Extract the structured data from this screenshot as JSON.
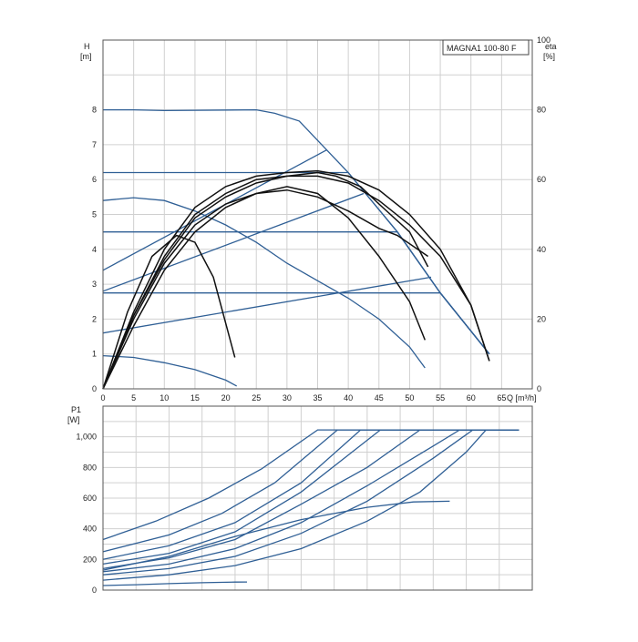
{
  "chart_data": [
    {
      "type": "line",
      "legend": "MAGNA1 100-80 F",
      "y_title": "H",
      "y_unit": "[m]",
      "y2_title": "eta",
      "y2_unit": "[%]",
      "x_title": "Q [m³/h]",
      "xlim": [
        0,
        70
      ],
      "ylim": [
        0,
        10
      ],
      "y2lim": [
        0,
        100
      ],
      "x_ticks": [
        "0",
        "5",
        "10",
        "15",
        "20",
        "25",
        "30",
        "35",
        "40",
        "45",
        "50",
        "55",
        "60",
        "65"
      ],
      "y_ticks": [
        "0",
        "1",
        "2",
        "3",
        "4",
        "5",
        "6",
        "7",
        "8"
      ],
      "y2_ticks": [
        "0",
        "20",
        "40",
        "60",
        "80",
        "100"
      ],
      "grid": true,
      "head_curves": [
        {
          "color": "#2f5f95",
          "points": [
            [
              0,
              8
            ],
            [
              5,
              8
            ],
            [
              10,
              7.98
            ],
            [
              25,
              8
            ],
            [
              28,
              7.9
            ],
            [
              32,
              7.68
            ],
            [
              40,
              6.2
            ],
            [
              48,
              4.5
            ],
            [
              55,
              2.75
            ],
            [
              63,
              1.0
            ]
          ]
        },
        {
          "color": "#2f5f95",
          "points": [
            [
              0,
              6.2
            ],
            [
              40,
              6.2
            ],
            [
              48,
              4.5
            ],
            [
              55,
              2.75
            ],
            [
              63,
              1.0
            ]
          ]
        },
        {
          "color": "#2f5f95",
          "points": [
            [
              0,
              4.5
            ],
            [
              48,
              4.5
            ],
            [
              55,
              2.75
            ],
            [
              63,
              1.0
            ]
          ]
        },
        {
          "color": "#2f5f95",
          "points": [
            [
              0,
              2.75
            ],
            [
              55,
              2.75
            ],
            [
              63,
              1.0
            ]
          ]
        },
        {
          "color": "#2f5f95",
          "points": [
            [
              0,
              5.4
            ],
            [
              5,
              5.48
            ],
            [
              10,
              5.4
            ],
            [
              15,
              5.1
            ],
            [
              20,
              4.7
            ],
            [
              25,
              4.2
            ],
            [
              30,
              3.6
            ],
            [
              35,
              3.1
            ],
            [
              40,
              2.6
            ],
            [
              45,
              2.0
            ],
            [
              50,
              1.2
            ],
            [
              52.5,
              0.6
            ]
          ]
        },
        {
          "color": "#2f5f95",
          "points": [
            [
              0,
              0.95
            ],
            [
              5,
              0.9
            ],
            [
              10,
              0.75
            ],
            [
              15,
              0.55
            ],
            [
              20,
              0.25
            ],
            [
              21.8,
              0.08
            ]
          ]
        }
      ],
      "system_curves": [
        {
          "color": "#2f5f95",
          "points": [
            [
              0,
              3.4
            ],
            [
              36.5,
              6.85
            ]
          ]
        },
        {
          "color": "#2f5f95",
          "points": [
            [
              0,
              2.8
            ],
            [
              42.5,
              5.6
            ]
          ]
        },
        {
          "color": "#2f5f95",
          "points": [
            [
              0,
              1.6
            ],
            [
              53.5,
              3.2
            ]
          ]
        }
      ],
      "efficiency_curves": [
        {
          "color": "#111111",
          "points": [
            [
              0,
              0
            ],
            [
              5,
              22
            ],
            [
              10,
              40
            ],
            [
              15,
              52
            ],
            [
              20,
              58
            ],
            [
              25,
              61
            ],
            [
              30,
              62
            ],
            [
              35,
              62.5
            ],
            [
              40,
              61
            ],
            [
              45,
              57
            ],
            [
              50,
              50
            ],
            [
              55,
              40
            ],
            [
              60,
              24
            ],
            [
              63,
              8
            ]
          ]
        },
        {
          "color": "#111111",
          "points": [
            [
              0,
              0
            ],
            [
              5,
              21
            ],
            [
              10,
              38
            ],
            [
              15,
              50
            ],
            [
              20,
              56
            ],
            [
              25,
              60
            ],
            [
              30,
              61
            ],
            [
              35,
              61
            ],
            [
              40,
              59
            ],
            [
              45,
              54
            ],
            [
              50,
              47
            ],
            [
              55,
              38
            ],
            [
              60,
              24
            ],
            [
              63,
              8
            ]
          ]
        },
        {
          "color": "#111111",
          "points": [
            [
              0,
              0
            ],
            [
              5,
              21
            ],
            [
              10,
              37
            ],
            [
              15,
              49
            ],
            [
              20,
              55
            ],
            [
              25,
              59
            ],
            [
              30,
              61
            ],
            [
              35,
              62
            ],
            [
              38,
              61
            ],
            [
              42,
              58
            ],
            [
              45,
              53
            ],
            [
              50,
              45
            ],
            [
              53,
              35
            ]
          ]
        },
        {
          "color": "#111111",
          "points": [
            [
              0,
              0
            ],
            [
              5,
              20
            ],
            [
              10,
              36
            ],
            [
              15,
              47
            ],
            [
              20,
              53
            ],
            [
              25,
              56
            ],
            [
              30,
              57
            ],
            [
              35,
              55
            ],
            [
              40,
              51
            ],
            [
              45,
              46
            ],
            [
              48,
              44
            ],
            [
              53,
              38
            ]
          ]
        },
        {
          "color": "#111111",
          "points": [
            [
              0,
              0
            ],
            [
              5,
              18
            ],
            [
              10,
              34
            ],
            [
              15,
              45
            ],
            [
              20,
              52
            ],
            [
              25,
              56
            ],
            [
              30,
              58
            ],
            [
              35,
              56
            ],
            [
              40,
              49
            ],
            [
              45,
              38
            ],
            [
              50,
              25
            ],
            [
              52.5,
              14
            ]
          ]
        },
        {
          "color": "#111111",
          "points": [
            [
              0,
              0
            ],
            [
              4,
              22
            ],
            [
              8,
              38
            ],
            [
              12,
              44
            ],
            [
              15,
              42
            ],
            [
              18,
              32
            ],
            [
              21.5,
              9
            ]
          ]
        }
      ]
    },
    {
      "type": "line",
      "y_title": "P1",
      "y_unit": "[W]",
      "xlim": [
        0,
        65
      ],
      "ylim": [
        0,
        1200
      ],
      "y_ticks": [
        "0",
        "200",
        "400",
        "600",
        "800",
        "1,000"
      ],
      "grid": true,
      "power_curves": [
        {
          "color": "#2f5f95",
          "points": [
            [
              0,
              330
            ],
            [
              8,
              450
            ],
            [
              16,
              600
            ],
            [
              24,
              790
            ],
            [
              32.5,
              1045
            ],
            [
              63,
              1045
            ]
          ]
        },
        {
          "color": "#2f5f95",
          "points": [
            [
              0,
              250
            ],
            [
              10,
              360
            ],
            [
              18,
              500
            ],
            [
              26,
              700
            ],
            [
              35.5,
              1045
            ],
            [
              63,
              1045
            ]
          ]
        },
        {
          "color": "#2f5f95",
          "points": [
            [
              0,
              200
            ],
            [
              10,
              290
            ],
            [
              20,
              440
            ],
            [
              30,
              700
            ],
            [
              39,
              1045
            ],
            [
              63,
              1045
            ]
          ]
        },
        {
          "color": "#2f5f95",
          "points": [
            [
              0,
              170
            ],
            [
              10,
              240
            ],
            [
              20,
              380
            ],
            [
              30,
              640
            ],
            [
              42,
              1045
            ],
            [
              63,
              1045
            ]
          ]
        },
        {
          "color": "#2f5f95",
          "points": [
            [
              0,
              140
            ],
            [
              10,
              210
            ],
            [
              20,
              330
            ],
            [
              30,
              560
            ],
            [
              40,
              800
            ],
            [
              48,
              1045
            ],
            [
              63,
              1045
            ]
          ]
        },
        {
          "color": "#2f5f95",
          "points": [
            [
              0,
              120
            ],
            [
              10,
              170
            ],
            [
              20,
              270
            ],
            [
              30,
              440
            ],
            [
              40,
              680
            ],
            [
              50,
              940
            ],
            [
              54,
              1045
            ],
            [
              63,
              1045
            ]
          ]
        },
        {
          "color": "#2f5f95",
          "points": [
            [
              0,
              100
            ],
            [
              10,
              140
            ],
            [
              20,
              220
            ],
            [
              30,
              370
            ],
            [
              40,
              580
            ],
            [
              50,
              860
            ],
            [
              56,
              1045
            ],
            [
              63,
              1045
            ]
          ]
        },
        {
          "color": "#2f5f95",
          "points": [
            [
              0,
              130
            ],
            [
              10,
              220
            ],
            [
              20,
              350
            ],
            [
              30,
              460
            ],
            [
              40,
              540
            ],
            [
              47,
              575
            ],
            [
              52.5,
              580
            ]
          ]
        },
        {
          "color": "#2f5f95",
          "points": [
            [
              0,
              65
            ],
            [
              10,
              100
            ],
            [
              20,
              160
            ],
            [
              30,
              270
            ],
            [
              40,
              450
            ],
            [
              48,
              640
            ],
            [
              55,
              900
            ],
            [
              58,
              1045
            ]
          ]
        },
        {
          "color": "#2f5f95",
          "points": [
            [
              0,
              30
            ],
            [
              5,
              35
            ],
            [
              10,
              42
            ],
            [
              15,
              48
            ],
            [
              20,
              52
            ],
            [
              21.8,
              53
            ]
          ]
        }
      ]
    }
  ]
}
